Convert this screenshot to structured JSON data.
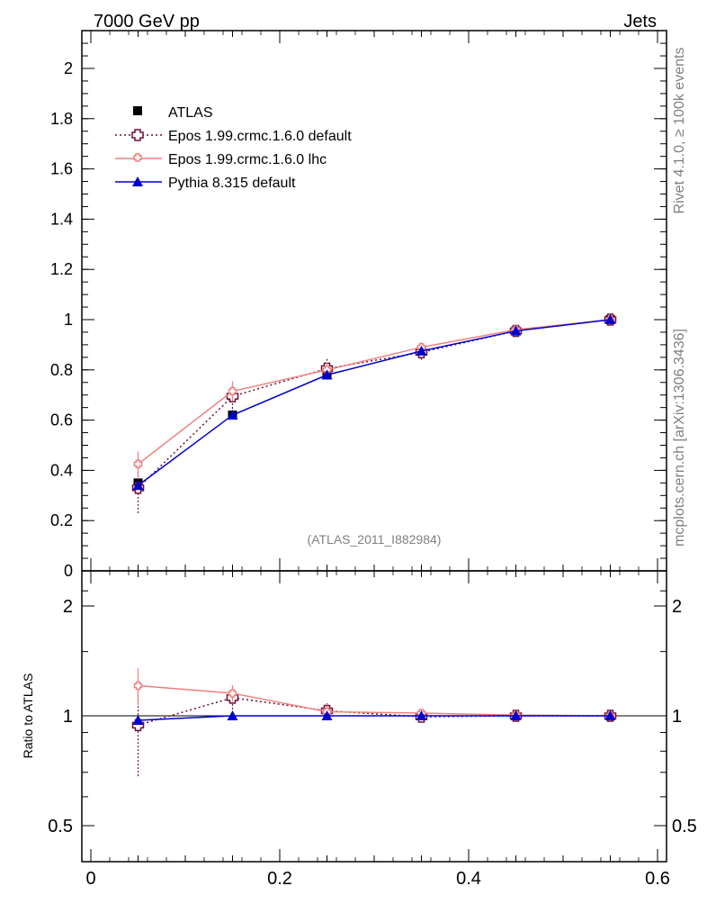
{
  "header": {
    "left_title": "7000 GeV pp",
    "right_title": "Jets"
  },
  "side_labels": {
    "rivet": "Rivet 4.1.0, ≥ 100k events",
    "mcplots": "mcplots.cern.ch [arXiv:1306.3436]"
  },
  "analysis_label": "(ATLAS_2011_I882984)",
  "colors": {
    "atlas": "#000000",
    "epos_default": "#6b0f3a",
    "epos_lhc": "#f08080",
    "pythia": "#0000cc"
  },
  "chart_data": [
    {
      "type": "line",
      "panel": "main",
      "title": "",
      "xlabel": "",
      "ylabel": "",
      "xlim": [
        0,
        0.6
      ],
      "ylim": [
        0,
        2.15
      ],
      "yticks": [
        0,
        0.2,
        0.4,
        0.6,
        0.8,
        1,
        1.2,
        1.4,
        1.6,
        1.8,
        2
      ],
      "ytick_labels": [
        "0",
        "0.2",
        "0.4",
        "0.6",
        "0.8",
        "1",
        "1.2",
        "1.4",
        "1.6",
        "1.8",
        "2"
      ],
      "x": [
        0.05,
        0.15,
        0.25,
        0.35,
        0.45,
        0.55
      ],
      "legend_position": "top-left",
      "series": [
        {
          "name": "ATLAS",
          "marker": "square",
          "values": [
            0.35,
            0.62,
            0.78,
            0.875,
            0.955,
            1.0
          ],
          "errors": [
            0.01,
            0.01,
            0.01,
            0.01,
            0.005,
            0.0
          ]
        },
        {
          "name": "Epos 1.99.crmc.1.6.0 default",
          "marker": "open-cross",
          "line": "dotted",
          "values": [
            0.33,
            0.695,
            0.805,
            0.87,
            0.955,
            1.0
          ],
          "errors": [
            0.1,
            0.05,
            0.04,
            0.03,
            0.01,
            0.0
          ]
        },
        {
          "name": "Epos 1.99.crmc.1.6.0 lhc",
          "marker": "small-cross",
          "line": "solid",
          "values": [
            0.425,
            0.715,
            0.8,
            0.89,
            0.96,
            1.0
          ],
          "errors": [
            0.05,
            0.04,
            0.03,
            0.02,
            0.01,
            0.0
          ]
        },
        {
          "name": "Pythia 8.315 default",
          "marker": "triangle",
          "line": "solid",
          "values": [
            0.34,
            0.62,
            0.78,
            0.875,
            0.955,
            1.0
          ],
          "errors": [
            0.005,
            0.005,
            0.005,
            0.005,
            0.003,
            0.0
          ]
        }
      ]
    },
    {
      "type": "line",
      "panel": "ratio",
      "title": "",
      "xlabel": "",
      "ylabel": "Ratio to ATLAS",
      "xlim": [
        0,
        0.6
      ],
      "ylim": [
        0.4,
        2.4
      ],
      "yscale": "log",
      "yticks": [
        0.5,
        1,
        2
      ],
      "ytick_labels": [
        "0.5",
        "1",
        "2"
      ],
      "xticks": [
        0,
        0.2,
        0.4,
        0.6
      ],
      "xtick_labels": [
        "0",
        "0.2",
        "0.4",
        "0.6"
      ],
      "x": [
        0.05,
        0.15,
        0.25,
        0.35,
        0.45,
        0.55
      ],
      "series": [
        {
          "name": "Epos 1.99.crmc.1.6.0 default",
          "values": [
            0.943,
            1.121,
            1.032,
            0.994,
            1.0,
            1.0
          ],
          "errors_low": [
            0.26,
            0.08,
            0.05,
            0.03,
            0.01,
            0.01
          ],
          "errors_high": [
            0.26,
            0.08,
            0.05,
            0.03,
            0.01,
            0.01
          ]
        },
        {
          "name": "Epos 1.99.crmc.1.6.0 lhc",
          "values": [
            1.21,
            1.153,
            1.026,
            1.017,
            1.005,
            1.0
          ],
          "errors_low": [
            0.14,
            0.06,
            0.04,
            0.02,
            0.01,
            0.01
          ],
          "errors_high": [
            0.14,
            0.06,
            0.04,
            0.02,
            0.01,
            0.01
          ]
        },
        {
          "name": "Pythia 8.315 default",
          "values": [
            0.972,
            1.0,
            1.0,
            1.0,
            1.0,
            1.0
          ],
          "errors_low": [
            0.01,
            0.005,
            0.005,
            0.005,
            0.005,
            0.0
          ],
          "errors_high": [
            0.01,
            0.005,
            0.005,
            0.005,
            0.005,
            0.0
          ]
        }
      ]
    }
  ]
}
